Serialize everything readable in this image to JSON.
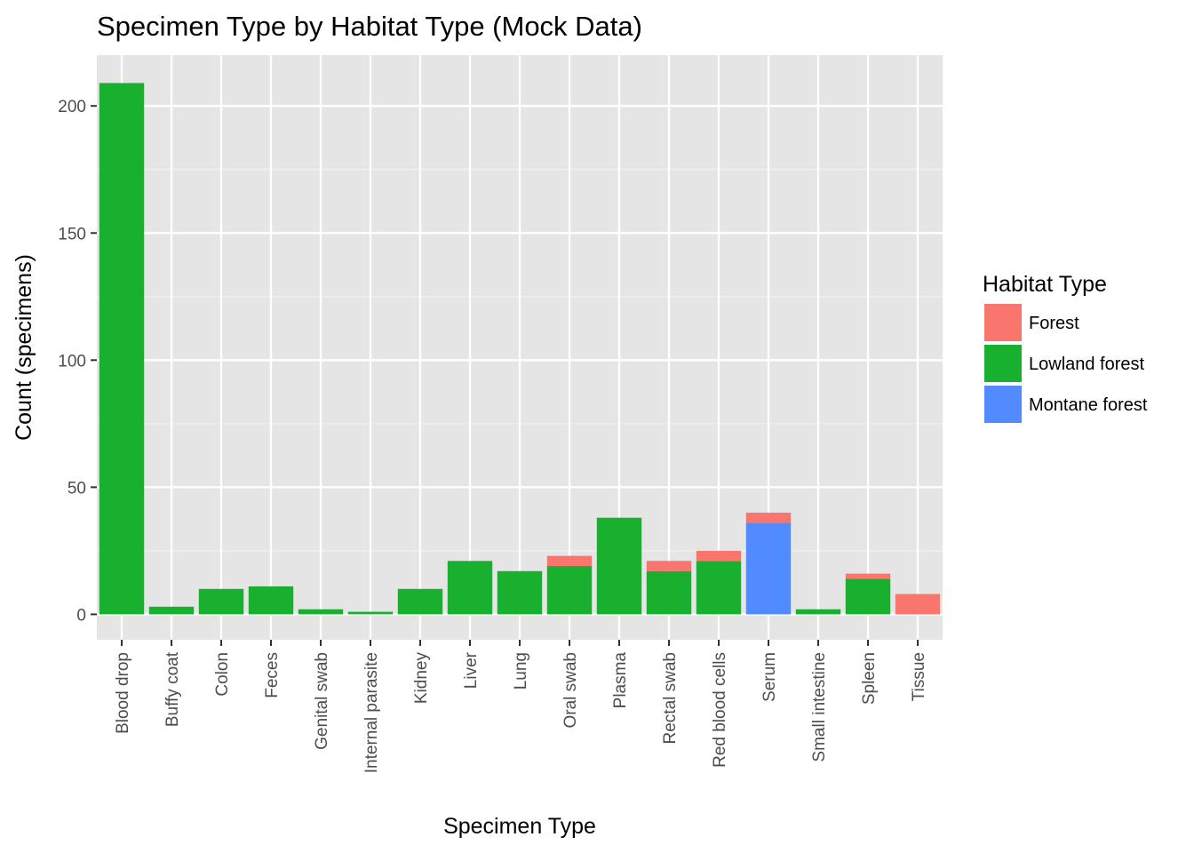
{
  "chart_data": {
    "type": "bar",
    "stacked": true,
    "title": "Specimen Type by Habitat Type (Mock Data)",
    "xlabel": "Specimen Type",
    "ylabel": "Count (specimens)",
    "ylim": [
      -10,
      220
    ],
    "yticks": [
      0,
      50,
      100,
      150,
      200
    ],
    "grid": true,
    "legend": {
      "title": "Habitat Type",
      "placement": "right"
    },
    "categories": [
      "Blood drop",
      "Buffy coat",
      "Colon",
      "Feces",
      "Genital swab",
      "Internal parasite",
      "Kidney",
      "Liver",
      "Lung",
      "Oral swab",
      "Plasma",
      "Rectal swab",
      "Red blood cells",
      "Serum",
      "Small intestine",
      "Spleen",
      "Tissue"
    ],
    "series": [
      {
        "name": "Forest",
        "color": "#F8766D",
        "values": [
          0,
          0,
          0,
          0,
          0,
          0,
          0,
          0,
          0,
          4,
          0,
          4,
          4,
          4,
          0,
          2,
          8
        ]
      },
      {
        "name": "Lowland forest",
        "color": "#1AB02F",
        "values": [
          209,
          3,
          10,
          11,
          2,
          1,
          10,
          21,
          17,
          19,
          38,
          17,
          21,
          0,
          2,
          14,
          0
        ]
      },
      {
        "name": "Montane forest",
        "color": "#528AFF",
        "values": [
          0,
          0,
          0,
          0,
          0,
          0,
          0,
          0,
          0,
          0,
          0,
          0,
          0,
          36,
          0,
          0,
          0
        ]
      }
    ],
    "stack_order_bottom_to_top": [
      "Montane forest",
      "Lowland forest",
      "Forest"
    ]
  }
}
